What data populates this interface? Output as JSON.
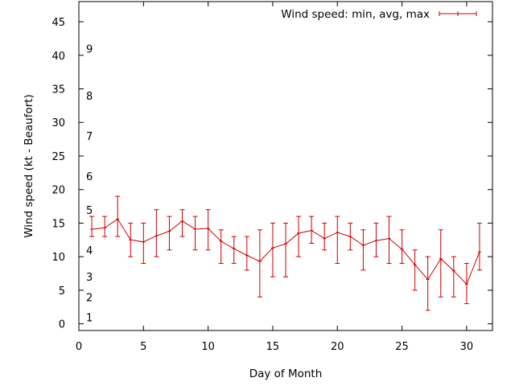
{
  "chart_data": {
    "type": "line",
    "xlabel": "Day of Month",
    "ylabel": "Wind speed (kt - Beaufort)",
    "xlim": [
      0,
      32
    ],
    "ylim": [
      -1,
      48
    ],
    "x_ticks": [
      0,
      5,
      10,
      15,
      20,
      25,
      30
    ],
    "y_ticks": [
      0,
      5,
      10,
      15,
      20,
      25,
      30,
      35,
      40,
      45
    ],
    "grid": false,
    "legend_position": "top-right",
    "series": [
      {
        "name": "Wind speed: min, avg, max",
        "color": "#cc0000",
        "error_bars": true,
        "x": [
          1,
          2,
          3,
          4,
          5,
          6,
          7,
          8,
          9,
          10,
          11,
          12,
          13,
          14,
          15,
          16,
          17,
          18,
          19,
          20,
          21,
          22,
          23,
          24,
          25,
          26,
          27,
          28,
          29,
          30,
          31
        ],
        "values": [
          14.1,
          14.3,
          15.6,
          12.5,
          12.2,
          13.1,
          13.8,
          15.3,
          14.1,
          14.2,
          12.3,
          11.2,
          10.2,
          9.3,
          11.3,
          11.9,
          13.5,
          13.9,
          12.7,
          13.6,
          13.0,
          11.7,
          12.4,
          12.7,
          11.1,
          8.8,
          6.6,
          9.7,
          7.9,
          5.9,
          10.7
        ],
        "min": [
          13,
          13,
          13,
          10,
          9,
          10,
          11,
          13,
          11,
          11,
          9,
          9,
          8,
          4,
          7,
          7,
          10,
          12,
          11,
          9,
          11,
          8,
          10,
          9,
          9,
          5,
          2,
          4,
          4,
          3,
          8
        ],
        "max": [
          16,
          16,
          19,
          15,
          15,
          17,
          16,
          17,
          16,
          17,
          14,
          13,
          13,
          14,
          15,
          15,
          16,
          16,
          15,
          16,
          15,
          14,
          15,
          16,
          14,
          11,
          10,
          14,
          10,
          9,
          15
        ]
      }
    ],
    "beaufort_labels": [
      {
        "label": "1",
        "value": 1
      },
      {
        "label": "2",
        "value": 4
      },
      {
        "label": "3",
        "value": 7
      },
      {
        "label": "4",
        "value": 11
      },
      {
        "label": "5",
        "value": 17
      },
      {
        "label": "6",
        "value": 22
      },
      {
        "label": "7",
        "value": 28
      },
      {
        "label": "8",
        "value": 34
      },
      {
        "label": "9",
        "value": 41
      }
    ]
  }
}
